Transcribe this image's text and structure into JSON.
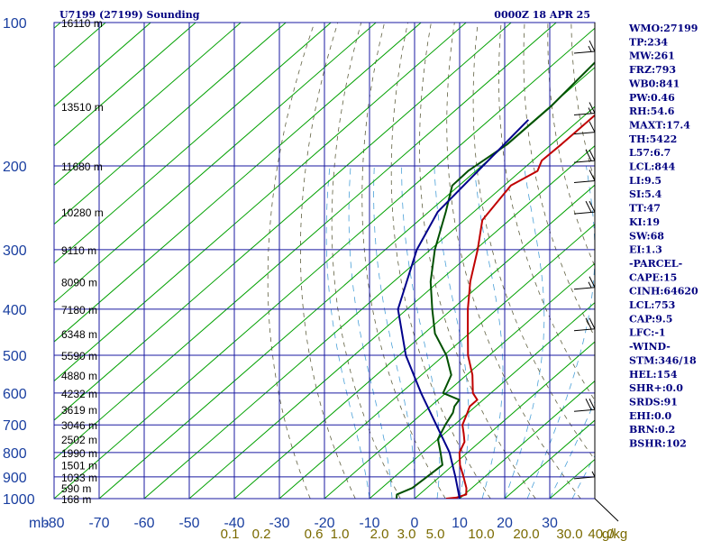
{
  "chart_data": {
    "type": "line",
    "title_left": "U7199 (27199) Sounding",
    "title_right": "0000Z 18 APR 25",
    "pressure_unit": "mb",
    "pressure_levels": [
      100,
      200,
      300,
      400,
      500,
      600,
      700,
      800,
      900,
      1000
    ],
    "temperature_ticks": [
      "-80",
      "-70",
      "-60",
      "-50",
      "-40",
      "-30",
      "-20",
      "-10",
      "0",
      "10",
      "20",
      "30"
    ],
    "xlim": [
      -80,
      40
    ],
    "ylim": [
      1000,
      100
    ],
    "mixing_ratio_unit": "g/kg",
    "mixing_ratio_labels": [
      "0.1",
      "0.2",
      "0.6",
      "1.0",
      "2.0",
      "3.0",
      "5.0",
      "10.0",
      "20.0",
      "30.0",
      "40.0"
    ],
    "height_labels": [
      {
        "p": 100,
        "text": "16110 m"
      },
      {
        "p": 150,
        "text": "13510 m"
      },
      {
        "p": 200,
        "text": "11680 m"
      },
      {
        "p": 250,
        "text": "10280 m"
      },
      {
        "p": 300,
        "text": "9110 m"
      },
      {
        "p": 350,
        "text": "8090 m"
      },
      {
        "p": 400,
        "text": "7180 m"
      },
      {
        "p": 450,
        "text": "6348 m"
      },
      {
        "p": 500,
        "text": "5590 m"
      },
      {
        "p": 550,
        "text": "4880 m"
      },
      {
        "p": 600,
        "text": "4232 m"
      },
      {
        "p": 650,
        "text": "3619 m"
      },
      {
        "p": 700,
        "text": "3046 m"
      },
      {
        "p": 750,
        "text": "2502 m"
      },
      {
        "p": 800,
        "text": "1990 m"
      },
      {
        "p": 850,
        "text": "1501 m"
      },
      {
        "p": 900,
        "text": "1033 m"
      },
      {
        "p": 950,
        "text": "590 m"
      },
      {
        "p": 1000,
        "text": "168 m"
      }
    ],
    "series": [
      {
        "id": "temperature",
        "color": "#c00000",
        "points": [
          [
            100,
            -57.8
          ],
          [
            140,
            -57.8
          ],
          [
            180,
            -57.8
          ],
          [
            195,
            -58
          ],
          [
            205,
            -56.3
          ],
          [
            220,
            -58.5
          ],
          [
            260,
            -56
          ],
          [
            300,
            -49.5
          ],
          [
            350,
            -43
          ],
          [
            400,
            -36.5
          ],
          [
            450,
            -30.3
          ],
          [
            500,
            -24.7
          ],
          [
            550,
            -18.7
          ],
          [
            600,
            -14
          ],
          [
            620,
            -11.3
          ],
          [
            640,
            -11.3
          ],
          [
            660,
            -10.2
          ],
          [
            700,
            -8.2
          ],
          [
            730,
            -5.7
          ],
          [
            760,
            -3.4
          ],
          [
            800,
            -1.8
          ],
          [
            850,
            1.5
          ],
          [
            900,
            5.3
          ],
          [
            950,
            8.8
          ],
          [
            980,
            10.4
          ],
          [
            995,
            9
          ],
          [
            1000,
            7
          ]
        ]
      },
      {
        "id": "dewpoint",
        "color": "#005000",
        "points": [
          [
            100,
            -74.8
          ],
          [
            120,
            -71.3
          ],
          [
            150,
            -69.8
          ],
          [
            180,
            -69.8
          ],
          [
            205,
            -71.7
          ],
          [
            220,
            -71.5
          ],
          [
            250,
            -66.2
          ],
          [
            300,
            -59
          ],
          [
            350,
            -51.8
          ],
          [
            400,
            -44.4
          ],
          [
            450,
            -37.6
          ],
          [
            500,
            -29.5
          ],
          [
            550,
            -23.4
          ],
          [
            600,
            -20.6
          ],
          [
            620,
            -15.3
          ],
          [
            640,
            -14.7
          ],
          [
            660,
            -13.4
          ],
          [
            700,
            -12
          ],
          [
            750,
            -10
          ],
          [
            800,
            -6
          ],
          [
            850,
            -2.4
          ],
          [
            900,
            -2.8
          ],
          [
            950,
            -3.2
          ],
          [
            980,
            -5
          ],
          [
            1000,
            -4
          ]
        ]
      },
      {
        "id": "parcel",
        "color": "#00008b",
        "points": [
          [
            160,
            -71.4
          ],
          [
            250,
            -68
          ],
          [
            300,
            -63
          ],
          [
            400,
            -52
          ],
          [
            500,
            -38.5
          ],
          [
            600,
            -25.5
          ],
          [
            700,
            -14
          ],
          [
            800,
            -4
          ],
          [
            900,
            3.5
          ],
          [
            1000,
            10
          ]
        ]
      }
    ],
    "wind_barbs": [
      {
        "p": 115,
        "barbs": 1.5
      },
      {
        "p": 155,
        "barbs": 1.5
      },
      {
        "p": 170,
        "barbs": 1
      },
      {
        "p": 195,
        "barbs": 2
      },
      {
        "p": 215,
        "barbs": 1
      },
      {
        "p": 250,
        "barbs": 2
      },
      {
        "p": 360,
        "barbs": 1.5
      },
      {
        "p": 440,
        "barbs": 2
      },
      {
        "p": 650,
        "barbs": 2
      },
      {
        "p": 900,
        "barbs": 0.5
      }
    ]
  },
  "indices": [
    "WMO:27199",
    "TP:234",
    "MW:261",
    "FRZ:793",
    "WB0:841",
    "PW:0.46",
    "RH:54.6",
    "MAXT:17.4",
    "TH:5422",
    "L57:6.7",
    "LCL:844",
    "LI:9.5",
    "SI:5.4",
    "TT:47",
    "KI:19",
    "SW:68",
    "EI:1.3",
    "-PARCEL-",
    "CAPE:15",
    "CINH:64620",
    "LCL:753",
    "CAP:9.5",
    "LFC:-1",
    "-WIND-",
    "STM:346/18",
    "HEL:154",
    "SHR+:0.0",
    "SRDS:91",
    "EHI:0.0",
    "BRN:0.2",
    "BSHR:102"
  ],
  "colors": {
    "grid": "#1a1aa0",
    "isotherm": "#00a000",
    "dry_adiabat": "#606040",
    "moist_adiabat": "#4aa0d8",
    "text": "#000080"
  }
}
